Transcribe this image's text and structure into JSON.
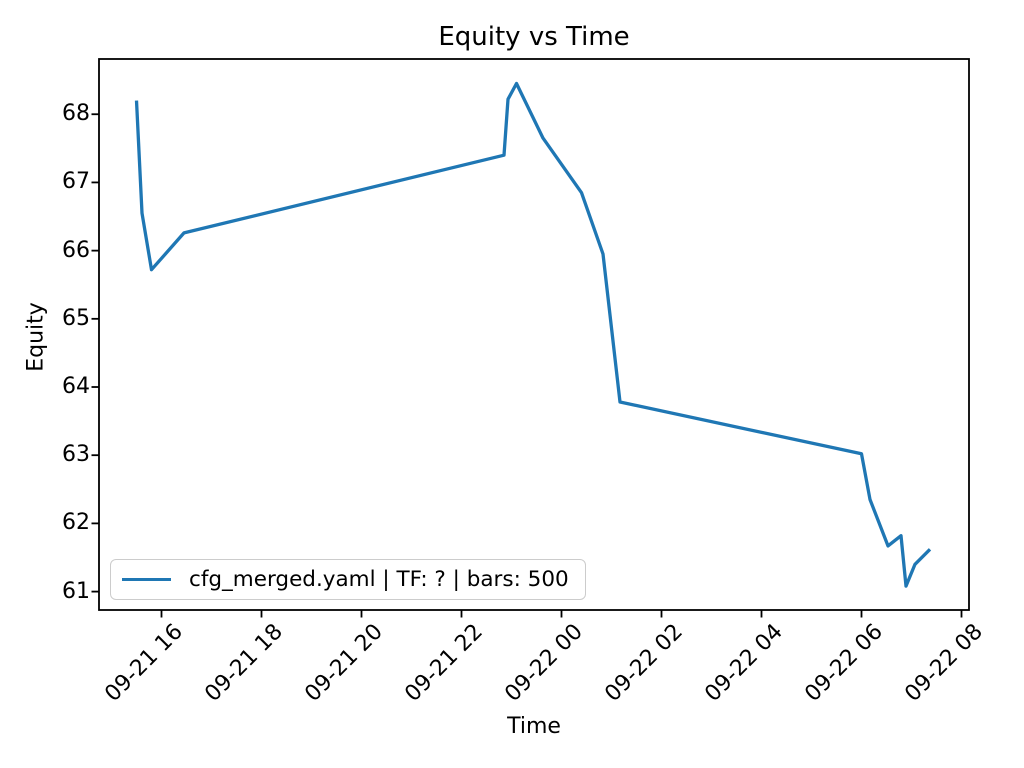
{
  "figure": {
    "background": "#ffffff"
  },
  "chart_data": {
    "type": "line",
    "title": "Equity vs Time",
    "xlabel": "Time",
    "ylabel": "Equity",
    "grid": false,
    "x_unit": "hours since 09-21 00:00",
    "xlim": [
      14.75,
      32.15
    ],
    "ylim": [
      60.73,
      68.81
    ],
    "xticks": [
      {
        "v": 16,
        "label": "09-21 16"
      },
      {
        "v": 18,
        "label": "09-21 18"
      },
      {
        "v": 20,
        "label": "09-21 20"
      },
      {
        "v": 22,
        "label": "09-21 22"
      },
      {
        "v": 24,
        "label": "09-22 00"
      },
      {
        "v": 26,
        "label": "09-22 02"
      },
      {
        "v": 28,
        "label": "09-22 04"
      },
      {
        "v": 30,
        "label": "09-22 06"
      },
      {
        "v": 32,
        "label": "09-22 08"
      }
    ],
    "yticks": [
      {
        "v": 61,
        "label": "61"
      },
      {
        "v": 62,
        "label": "62"
      },
      {
        "v": 63,
        "label": "63"
      },
      {
        "v": 64,
        "label": "64"
      },
      {
        "v": 65,
        "label": "65"
      },
      {
        "v": 66,
        "label": "66"
      },
      {
        "v": 67,
        "label": "67"
      },
      {
        "v": 68,
        "label": "68"
      }
    ],
    "legend": {
      "position": "lower left"
    },
    "series": [
      {
        "name": "cfg_merged.yaml | TF: ? | bars: 500",
        "color": "#1f77b4",
        "x": [
          15.5,
          15.61,
          15.8,
          16.45,
          22.85,
          22.93,
          23.1,
          23.63,
          24.4,
          24.83,
          25.17,
          30.0,
          30.17,
          30.53,
          30.79,
          30.89,
          31.07,
          31.37
        ],
        "y": [
          68.2,
          66.55,
          65.72,
          66.26,
          67.4,
          68.22,
          68.45,
          67.65,
          66.85,
          65.95,
          63.78,
          63.02,
          62.35,
          61.67,
          61.82,
          61.08,
          61.4,
          61.62
        ]
      }
    ],
    "axis_color": "#000000"
  }
}
